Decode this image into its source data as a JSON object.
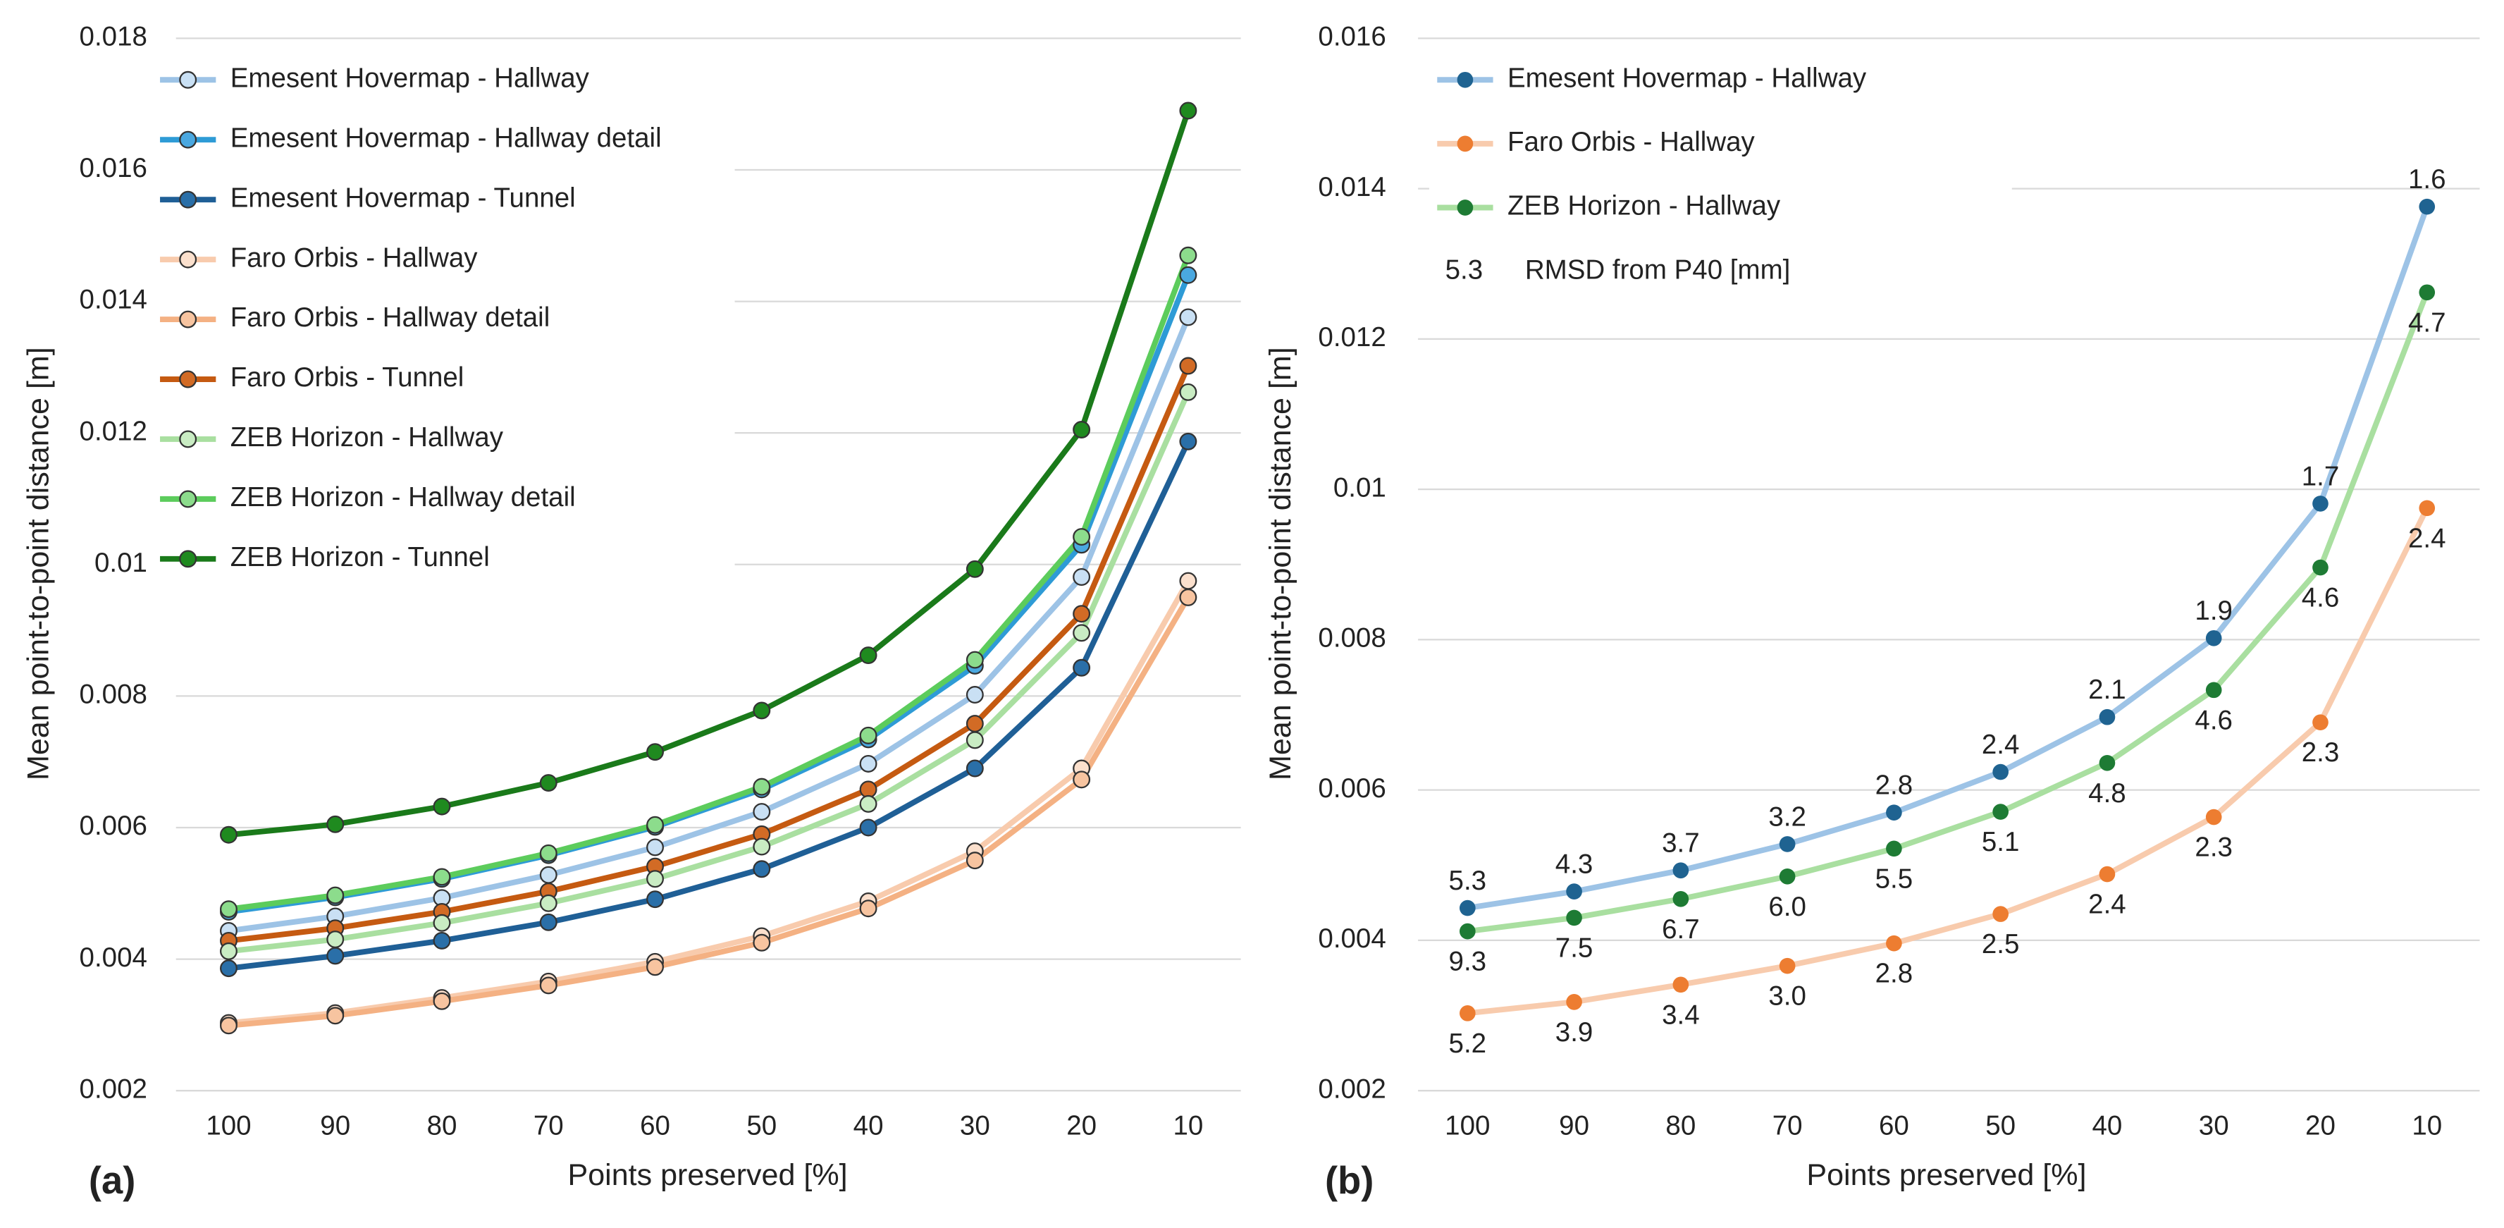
{
  "chart_data": [
    {
      "type": "line",
      "panel_label": "(a)",
      "x_label": "Points preserved [%]",
      "y_label": "Mean point-to-point distance [m]",
      "categories": [
        "100",
        "90",
        "80",
        "70",
        "60",
        "50",
        "40",
        "30",
        "20",
        "10"
      ],
      "ylim": [
        0.002,
        0.018
      ],
      "yticks": [
        0.002,
        0.004,
        0.006,
        0.008,
        0.01,
        0.012,
        0.014,
        0.016,
        0.018
      ],
      "grid": true,
      "legend": "upper left",
      "series": [
        {
          "name": "Emesent Hovermap - Hallway",
          "color": "#9dc3e6",
          "marker_color": "#c9e0f4",
          "values": [
            0.00443,
            0.00465,
            0.00493,
            0.00528,
            0.0057,
            0.00624,
            0.00697,
            0.00802,
            0.00981,
            0.01376
          ]
        },
        {
          "name": "Emesent Hovermap - Hallway detail",
          "color": "#2e9bd6",
          "marker_color": "#4aa8e0",
          "values": [
            0.00472,
            0.00494,
            0.00522,
            0.00558,
            0.00601,
            0.00658,
            0.00734,
            0.00846,
            0.0103,
            0.0144
          ]
        },
        {
          "name": "Emesent Hovermap - Tunnel",
          "color": "#1f5f96",
          "marker_color": "#2a6fa8",
          "values": [
            0.00386,
            0.00405,
            0.00428,
            0.00456,
            0.00491,
            0.00537,
            0.006,
            0.0069,
            0.00843,
            0.01187
          ]
        },
        {
          "name": "Faro Orbis - Hallway",
          "color": "#f8cbad",
          "marker_color": "#fbe0cd",
          "values": [
            0.00303,
            0.00318,
            0.00341,
            0.00366,
            0.00396,
            0.00435,
            0.00488,
            0.00564,
            0.0069,
            0.00975
          ]
        },
        {
          "name": "Faro Orbis - Hallway detail",
          "color": "#f4b183",
          "marker_color": "#f7c4a0",
          "values": [
            0.00299,
            0.00314,
            0.00336,
            0.0036,
            0.00388,
            0.00425,
            0.00477,
            0.0055,
            0.00673,
            0.0095
          ]
        },
        {
          "name": "Faro Orbis - Tunnel",
          "color": "#c55a11",
          "marker_color": "#d26b25",
          "values": [
            0.00428,
            0.00447,
            0.00472,
            0.00503,
            0.00541,
            0.0059,
            0.00658,
            0.00758,
            0.00925,
            0.01302
          ]
        },
        {
          "name": "ZEB Horizon - Hallway",
          "color": "#a9dfa0",
          "marker_color": "#c9ecc3",
          "values": [
            0.00412,
            0.0043,
            0.00455,
            0.00485,
            0.00522,
            0.00571,
            0.00636,
            0.00733,
            0.00896,
            0.01262
          ]
        },
        {
          "name": "ZEB Horizon - Hallway detail",
          "color": "#5ccc5c",
          "marker_color": "#8cdc8c",
          "values": [
            0.00476,
            0.00497,
            0.00525,
            0.00561,
            0.00604,
            0.00662,
            0.0074,
            0.00855,
            0.01042,
            0.0147
          ]
        },
        {
          "name": "ZEB Horizon - Tunnel",
          "color": "#1a7a1a",
          "marker_color": "#1f8a1f",
          "values": [
            0.00589,
            0.00605,
            0.00632,
            0.00668,
            0.00715,
            0.00778,
            0.00862,
            0.00993,
            0.01205,
            0.0169
          ]
        }
      ]
    },
    {
      "type": "line",
      "panel_label": "(b)",
      "x_label": "Points preserved [%]",
      "y_label": "Mean point-to-point distance [m]",
      "categories": [
        "100",
        "90",
        "80",
        "70",
        "60",
        "50",
        "40",
        "30",
        "20",
        "10"
      ],
      "ylim": [
        0.002,
        0.016
      ],
      "yticks": [
        0.002,
        0.004,
        0.006,
        0.008,
        0.01,
        0.012,
        0.014,
        0.016
      ],
      "grid": true,
      "legend": "upper left",
      "legend_note": {
        "sample": "5.3",
        "text": "RMSD from P40 [mm]"
      },
      "series": [
        {
          "name": "Emesent Hovermap - Hallway",
          "color": "#9dc3e6",
          "marker_color": "#1f6391",
          "label_position": "above",
          "values": [
            0.00443,
            0.00465,
            0.00493,
            0.00528,
            0.0057,
            0.00624,
            0.00697,
            0.00802,
            0.00981,
            0.01376
          ],
          "labels": [
            "5.3",
            "4.3",
            "3.7",
            "3.2",
            "2.8",
            "2.4",
            "2.1",
            "1.9",
            "1.7",
            "1.6"
          ]
        },
        {
          "name": "Faro Orbis - Hallway",
          "color": "#f8cbad",
          "marker_color": "#ed7d31",
          "label_position": "below",
          "values": [
            0.00303,
            0.00318,
            0.00341,
            0.00366,
            0.00396,
            0.00435,
            0.00488,
            0.00564,
            0.0069,
            0.00975
          ],
          "labels": [
            "5.2",
            "3.9",
            "3.4",
            "3.0",
            "2.8",
            "2.5",
            "2.4",
            "2.3",
            "2.3",
            "2.4"
          ]
        },
        {
          "name": "ZEB Horizon - Hallway",
          "color": "#a9dfa0",
          "marker_color": "#1e7b34",
          "label_position": "below",
          "values": [
            0.00412,
            0.0043,
            0.00455,
            0.00485,
            0.00522,
            0.00571,
            0.00636,
            0.00733,
            0.00896,
            0.01262
          ],
          "labels": [
            "9.3",
            "7.5",
            "6.7",
            "6.0",
            "5.5",
            "5.1",
            "4.8",
            "4.6",
            "4.6",
            "4.7"
          ]
        }
      ]
    }
  ]
}
